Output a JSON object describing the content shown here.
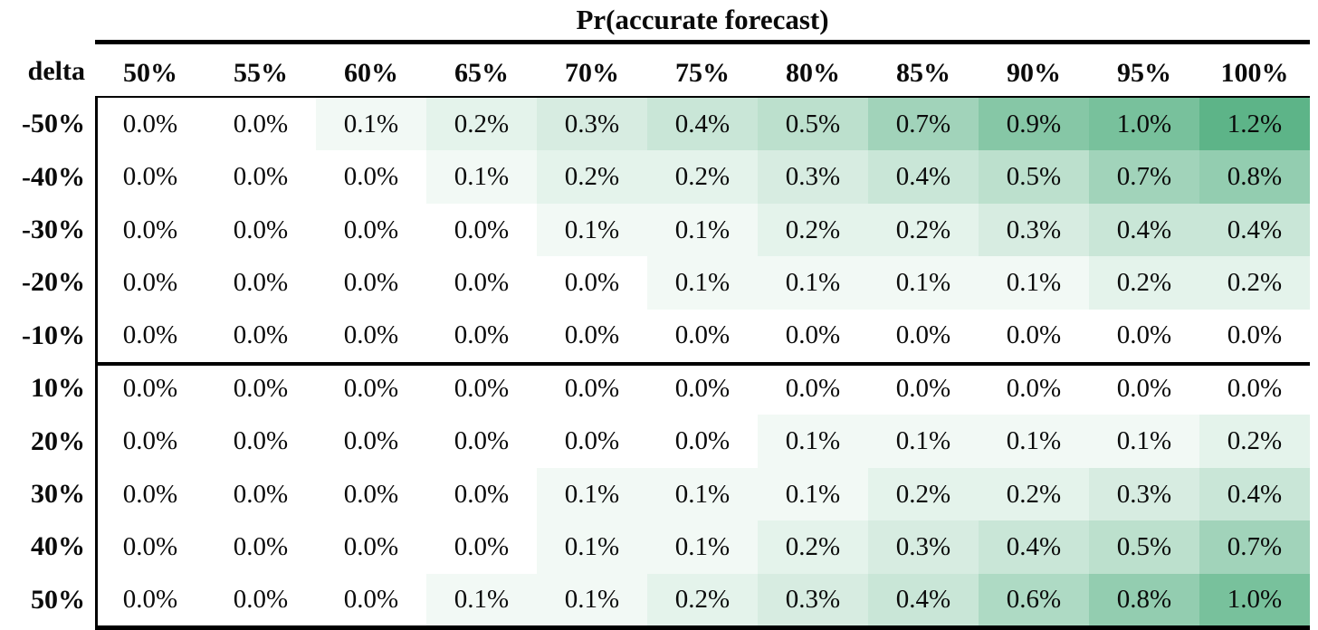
{
  "title": "Pr(accurate forecast)",
  "row_header_label": "delta",
  "chart_data": {
    "type": "heatmap",
    "title": "Pr(accurate forecast)",
    "row_axis_label": "delta",
    "columns": [
      "50%",
      "55%",
      "60%",
      "65%",
      "70%",
      "75%",
      "80%",
      "85%",
      "90%",
      "95%",
      "100%"
    ],
    "rows": [
      "-50%",
      "-40%",
      "-30%",
      "-20%",
      "-10%",
      "10%",
      "20%",
      "30%",
      "40%",
      "50%"
    ],
    "values_pct": [
      [
        0.0,
        0.0,
        0.1,
        0.2,
        0.3,
        0.4,
        0.5,
        0.7,
        0.9,
        1.0,
        1.2
      ],
      [
        0.0,
        0.0,
        0.0,
        0.1,
        0.2,
        0.2,
        0.3,
        0.4,
        0.5,
        0.7,
        0.8
      ],
      [
        0.0,
        0.0,
        0.0,
        0.0,
        0.1,
        0.1,
        0.2,
        0.2,
        0.3,
        0.4,
        0.4
      ],
      [
        0.0,
        0.0,
        0.0,
        0.0,
        0.0,
        0.1,
        0.1,
        0.1,
        0.1,
        0.2,
        0.2
      ],
      [
        0.0,
        0.0,
        0.0,
        0.0,
        0.0,
        0.0,
        0.0,
        0.0,
        0.0,
        0.0,
        0.0
      ],
      [
        0.0,
        0.0,
        0.0,
        0.0,
        0.0,
        0.0,
        0.0,
        0.0,
        0.0,
        0.0,
        0.0
      ],
      [
        0.0,
        0.0,
        0.0,
        0.0,
        0.0,
        0.0,
        0.1,
        0.1,
        0.1,
        0.1,
        0.2
      ],
      [
        0.0,
        0.0,
        0.0,
        0.0,
        0.1,
        0.1,
        0.1,
        0.2,
        0.2,
        0.3,
        0.4
      ],
      [
        0.0,
        0.0,
        0.0,
        0.0,
        0.1,
        0.1,
        0.2,
        0.3,
        0.4,
        0.5,
        0.7
      ],
      [
        0.0,
        0.0,
        0.0,
        0.1,
        0.1,
        0.2,
        0.3,
        0.4,
        0.6,
        0.8,
        1.0
      ]
    ],
    "value_format": "one_decimal_percent",
    "separator_after_row": "-10%",
    "color_scale": {
      "min_value": 0.0,
      "max_value": 1.2,
      "min_color": "#ffffff",
      "max_color": "#5db488"
    },
    "text_color": "#0a0a0a",
    "border_color": "#000000",
    "legend": "none",
    "grid": false
  }
}
